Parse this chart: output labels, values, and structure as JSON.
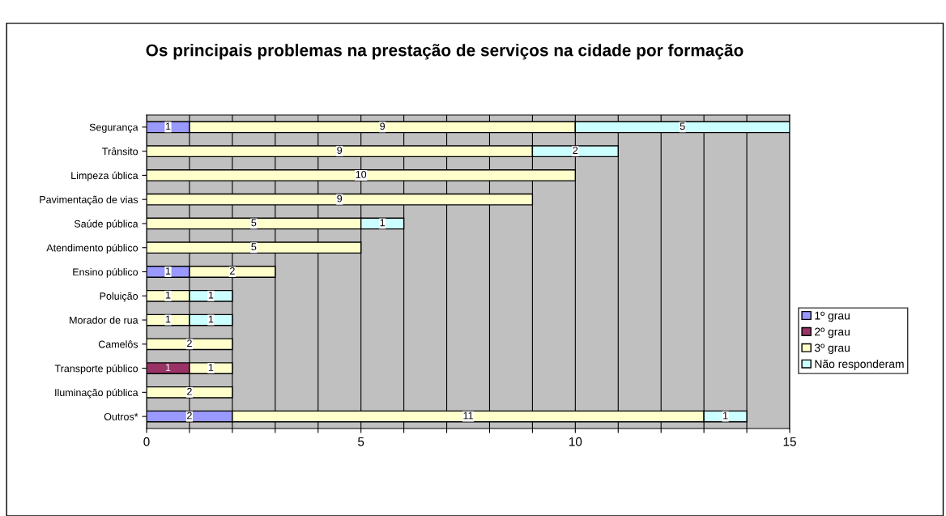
{
  "chart_data": {
    "type": "bar",
    "orientation": "horizontal",
    "stacked": true,
    "title": "Os principais problemas na prestação de serviços na cidade por formação",
    "categories": [
      "Segurança",
      "Trânsito",
      "Limpeza ública",
      "Pavimentação de vias",
      "Saúde pública",
      "Atendimento público",
      "Ensino público",
      "Poluição",
      "Morador de rua",
      "Camelôs",
      "Transporte público",
      "Iluminação pública",
      "Outros*"
    ],
    "series": [
      {
        "name": "1º grau",
        "color": "#9999ff",
        "values": [
          1,
          null,
          null,
          null,
          null,
          null,
          1,
          null,
          null,
          null,
          null,
          null,
          2
        ]
      },
      {
        "name": "2º grau",
        "color": "#993366",
        "values": [
          null,
          null,
          null,
          null,
          null,
          null,
          null,
          null,
          null,
          null,
          1,
          null,
          null
        ]
      },
      {
        "name": "3º grau",
        "color": "#ffffcc",
        "values": [
          9,
          9,
          10,
          9,
          5,
          5,
          2,
          1,
          1,
          2,
          1,
          2,
          11
        ]
      },
      {
        "name": "Não responderam",
        "color": "#ccffff",
        "values": [
          5,
          2,
          null,
          null,
          1,
          null,
          null,
          1,
          1,
          null,
          null,
          null,
          1
        ]
      }
    ],
    "xlim": [
      0,
      15
    ],
    "xticks": [
      0,
      {
        "value": 1,
        "label": null
      },
      {
        "value": 2,
        "label": null
      },
      {
        "value": 3,
        "label": null
      },
      {
        "value": 4,
        "label": null
      },
      5,
      {
        "value": 6,
        "label": null
      },
      {
        "value": 7,
        "label": null
      },
      {
        "value": 8,
        "label": null
      },
      {
        "value": 9,
        "label": null
      },
      10,
      {
        "value": 11,
        "label": null
      },
      {
        "value": 12,
        "label": null
      },
      {
        "value": 13,
        "label": null
      },
      {
        "value": 14,
        "label": null
      },
      15
    ],
    "grid": "x",
    "legend": "right",
    "data_labels": true
  }
}
